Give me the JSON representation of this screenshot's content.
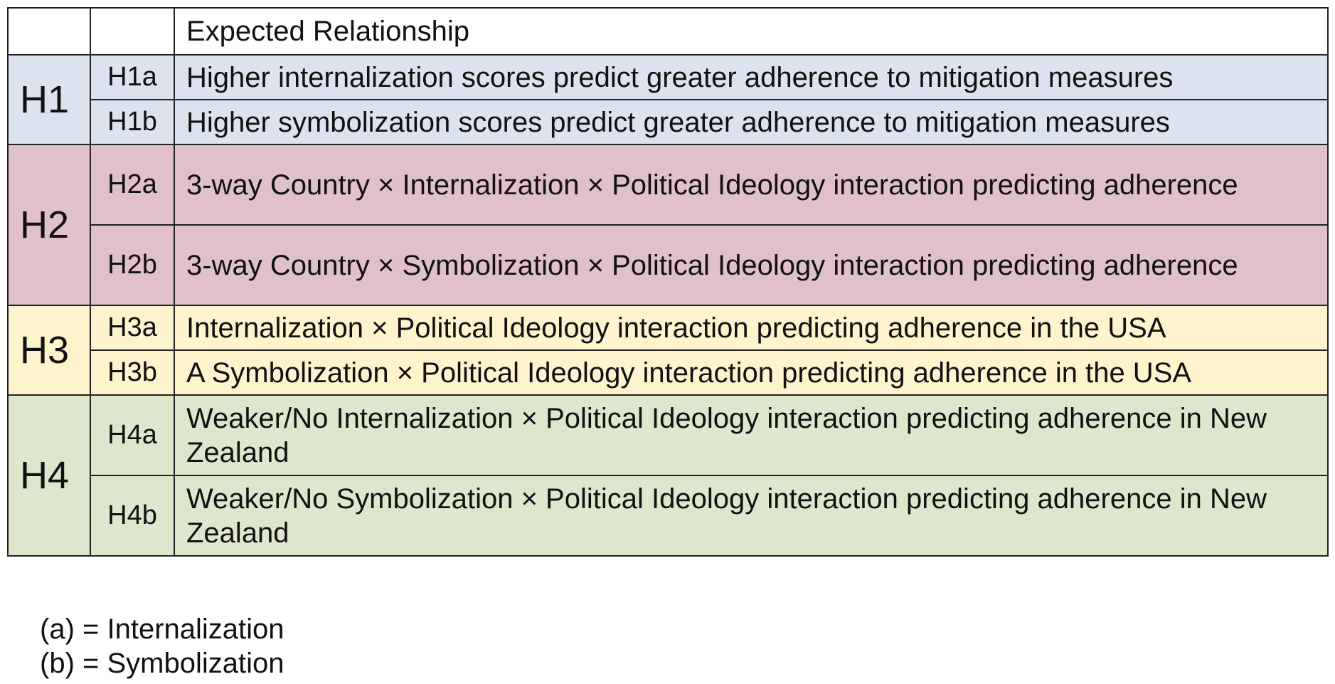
{
  "header": {
    "group": "",
    "sub": "",
    "description": "Expected Relationship"
  },
  "groups": [
    {
      "label": "H1",
      "color": "#dce3ef",
      "rows": [
        {
          "id": "H1a",
          "text": "Higher internalization scores predict greater adherence to mitigation measures"
        },
        {
          "id": "H1b",
          "text": "Higher symbolization scores predict greater adherence to mitigation measures"
        }
      ]
    },
    {
      "label": "H2",
      "color": "#e0c0cb",
      "rows": [
        {
          "id": "H2a",
          "text": "3-way Country × Internalization × Political Ideology interaction predicting adherence"
        },
        {
          "id": "H2b",
          "text": "3-way Country × Symbolization × Political Ideology interaction predicting adherence"
        }
      ]
    },
    {
      "label": "H3",
      "color": "#fdf3cc",
      "rows": [
        {
          "id": "H3a",
          "text": "Internalization × Political Ideology interaction predicting adherence in the USA"
        },
        {
          "id": "H3b",
          "text": "A Symbolization × Political Ideology interaction predicting adherence in the USA"
        }
      ]
    },
    {
      "label": "H4",
      "color": "#dee7cc",
      "rows": [
        {
          "id": "H4a",
          "text": "Weaker/No Internalization × Political Ideology interaction predicting adherence in New Zealand"
        },
        {
          "id": "H4b",
          "text": "Weaker/No Symbolization × Political Ideology interaction predicting adherence in New Zealand"
        }
      ]
    }
  ],
  "legend": {
    "a": "(a) = Internalization",
    "b": "(b) = Symbolization"
  }
}
